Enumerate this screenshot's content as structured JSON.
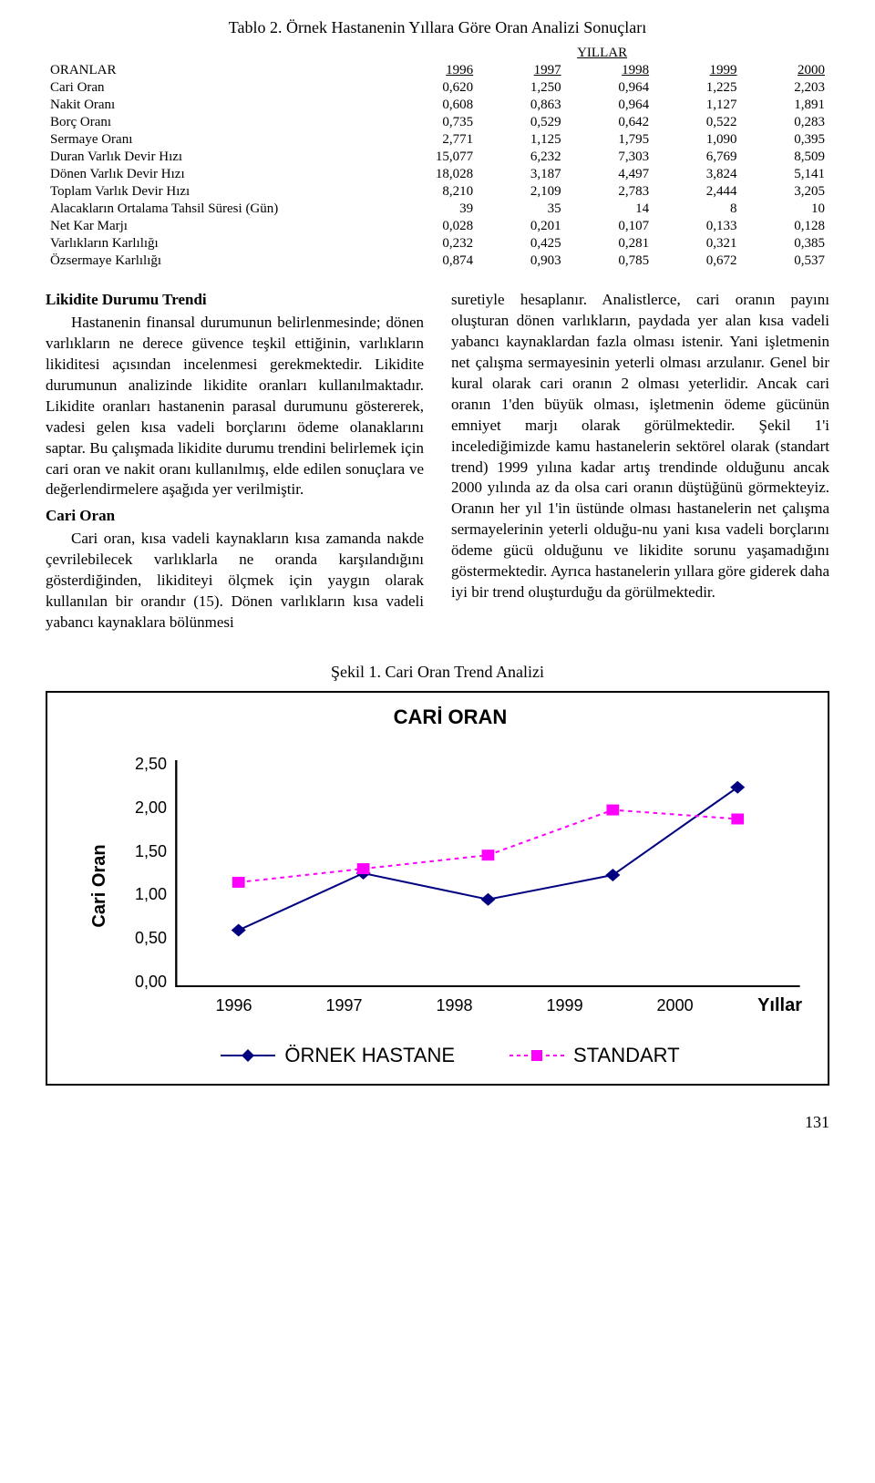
{
  "table": {
    "title": "Tablo 2. Örnek Hastanenin Yıllara Göre Oran Analizi Sonuçları",
    "superheader": "YILLAR",
    "row_header": "ORANLAR",
    "years": [
      "1996",
      "1997",
      "1998",
      "1999",
      "2000"
    ],
    "rows": [
      {
        "label": "Cari Oran",
        "vals": [
          "0,620",
          "1,250",
          "0,964",
          "1,225",
          "2,203"
        ]
      },
      {
        "label": "Nakit Oranı",
        "vals": [
          "0,608",
          "0,863",
          "0,964",
          "1,127",
          "1,891"
        ]
      },
      {
        "label": "Borç Oranı",
        "vals": [
          "0,735",
          "0,529",
          "0,642",
          "0,522",
          "0,283"
        ]
      },
      {
        "label": "Sermaye Oranı",
        "vals": [
          "2,771",
          "1,125",
          "1,795",
          "1,090",
          "0,395"
        ]
      },
      {
        "label": "Duran Varlık Devir Hızı",
        "vals": [
          "15,077",
          "6,232",
          "7,303",
          "6,769",
          "8,509"
        ]
      },
      {
        "label": "Dönen Varlık Devir Hızı",
        "vals": [
          "18,028",
          "3,187",
          "4,497",
          "3,824",
          "5,141"
        ]
      },
      {
        "label": "Toplam Varlık Devir Hızı",
        "vals": [
          "8,210",
          "2,109",
          "2,783",
          "2,444",
          "3,205"
        ]
      },
      {
        "label": "Alacakların Ortalama Tahsil Süresi (Gün)",
        "vals": [
          "39",
          "35",
          "14",
          "8",
          "10"
        ]
      },
      {
        "label": "Net Kar Marjı",
        "vals": [
          "0,028",
          "0,201",
          "0,107",
          "0,133",
          "0,128"
        ]
      },
      {
        "label": "Varlıkların Karlılığı",
        "vals": [
          "0,232",
          "0,425",
          "0,281",
          "0,321",
          "0,385"
        ]
      },
      {
        "label": "Özsermaye Karlılığı",
        "vals": [
          "0,874",
          "0,903",
          "0,785",
          "0,672",
          "0,537"
        ]
      }
    ]
  },
  "left": {
    "h1": "Likidite Durumu Trendi",
    "p1": "Hastanenin finansal durumunun belirlenmesinde; dönen varlıkların ne derece güvence teşkil ettiğinin, varlıkların likiditesi açısından incelenmesi gerekmektedir. Likidite durumunun analizinde likidite oranları kullanılmaktadır. Likidite oranları hastanenin parasal durumunu göstererek, vadesi gelen kısa vadeli borçlarını ödeme olanaklarını saptar. Bu çalışmada likidite durumu trendini belirlemek için cari oran ve nakit oranı kullanılmış, elde edilen sonuçlara ve değerlendirmelere aşağıda yer verilmiştir.",
    "h2": "Cari Oran",
    "p2": "Cari oran, kısa vadeli kaynakların kısa zamanda nakde çevrilebilecek varlıklarla ne oranda karşılandığını gösterdiğinden, likiditeyi ölçmek için yaygın olarak kullanılan bir orandır (15). Dönen varlıkların kısa vadeli yabancı kaynaklara bölünmesi"
  },
  "right": {
    "p1": "suretiyle hesaplanır. Analistlerce, cari oranın payını oluşturan dönen varlıkların, paydada yer alan kısa vadeli yabancı kaynaklardan fazla olması istenir. Yani işletmenin net çalışma sermayesinin yeterli olması arzulanır. Genel bir kural olarak cari oranın 2 olması yeterlidir. Ancak cari oranın 1'den büyük olması, işletmenin ödeme gücünün emniyet marjı olarak görülmektedir. Şekil 1'i incelediğimizde kamu hastanelerin sektörel olarak (standart trend) 1999 yılına kadar artış trendinde olduğunu ancak 2000 yılında az da olsa cari oranın düştüğünü görmekteyiz. Oranın her yıl 1'in üstünde olması hastanelerin net çalışma sermayelerinin yeterli olduğu-nu yani kısa vadeli borçlarını ödeme gücü olduğunu ve likidite sorunu yaşamadığını göstermektedir. Ayrıca hastanelerin yıllara göre giderek daha iyi bir trend oluşturduğu da görülmektedir."
  },
  "chart": {
    "caption": "Şekil 1. Cari Oran Trend Analizi",
    "title": "CARİ ORAN",
    "ylabel": "Cari Oran",
    "xlabel": "Yıllar",
    "categories": [
      "1996",
      "1997",
      "1998",
      "1999",
      "2000"
    ],
    "yticks": [
      "2,50",
      "2,00",
      "1,50",
      "1,00",
      "0,50",
      "0,00"
    ],
    "ylim": [
      0,
      2.5
    ],
    "series": [
      {
        "name": "ÖRNEK HASTANE",
        "values": [
          0.62,
          1.25,
          0.96,
          1.23,
          2.2
        ],
        "color": "#000080",
        "marker": "diamond",
        "dash": "none",
        "marker_size": 7
      },
      {
        "name": "STANDART",
        "values": [
          1.15,
          1.3,
          1.45,
          1.95,
          1.85
        ],
        "color": "#ff00ff",
        "marker": "square",
        "dash": "4 4",
        "marker_size": 6
      }
    ],
    "bg": "#ffffff",
    "axis_color": "#000000"
  },
  "page_number": "131"
}
